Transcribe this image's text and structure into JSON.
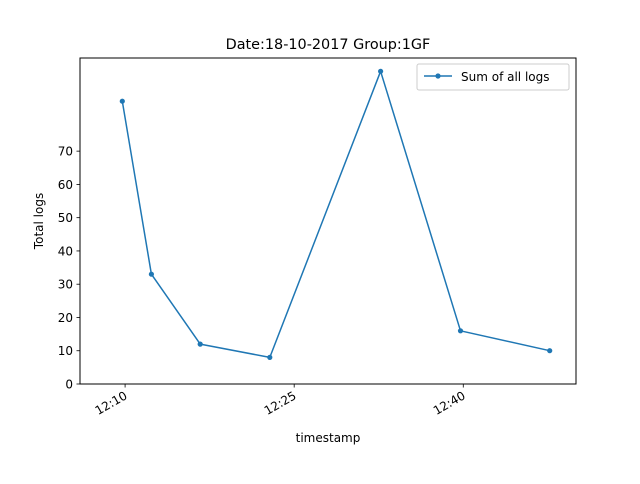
{
  "chart_data": {
    "type": "line",
    "title": "Date:18-10-2017  Group:1GF",
    "xlabel": "timestamp",
    "ylabel": "Total logs",
    "x_is_time": true,
    "xlim": [
      "12:06",
      "12:50"
    ],
    "ylim": [
      0,
      98
    ],
    "x_ticks": [
      "12:10",
      "12:25",
      "12:40"
    ],
    "y_ticks": [
      0,
      10,
      20,
      30,
      40,
      50,
      60,
      70
    ],
    "grid": false,
    "legend_position": "top-right",
    "series": [
      {
        "name": "Sum of all logs",
        "color": "#1f77b4",
        "marker": "point",
        "x": [
          "12:09:45",
          "12:12:20",
          "12:16:40",
          "12:22:50",
          "12:32:40",
          "12:39:45",
          "12:47:40"
        ],
        "y": [
          85,
          33,
          12,
          8,
          94,
          16,
          10
        ]
      }
    ]
  }
}
